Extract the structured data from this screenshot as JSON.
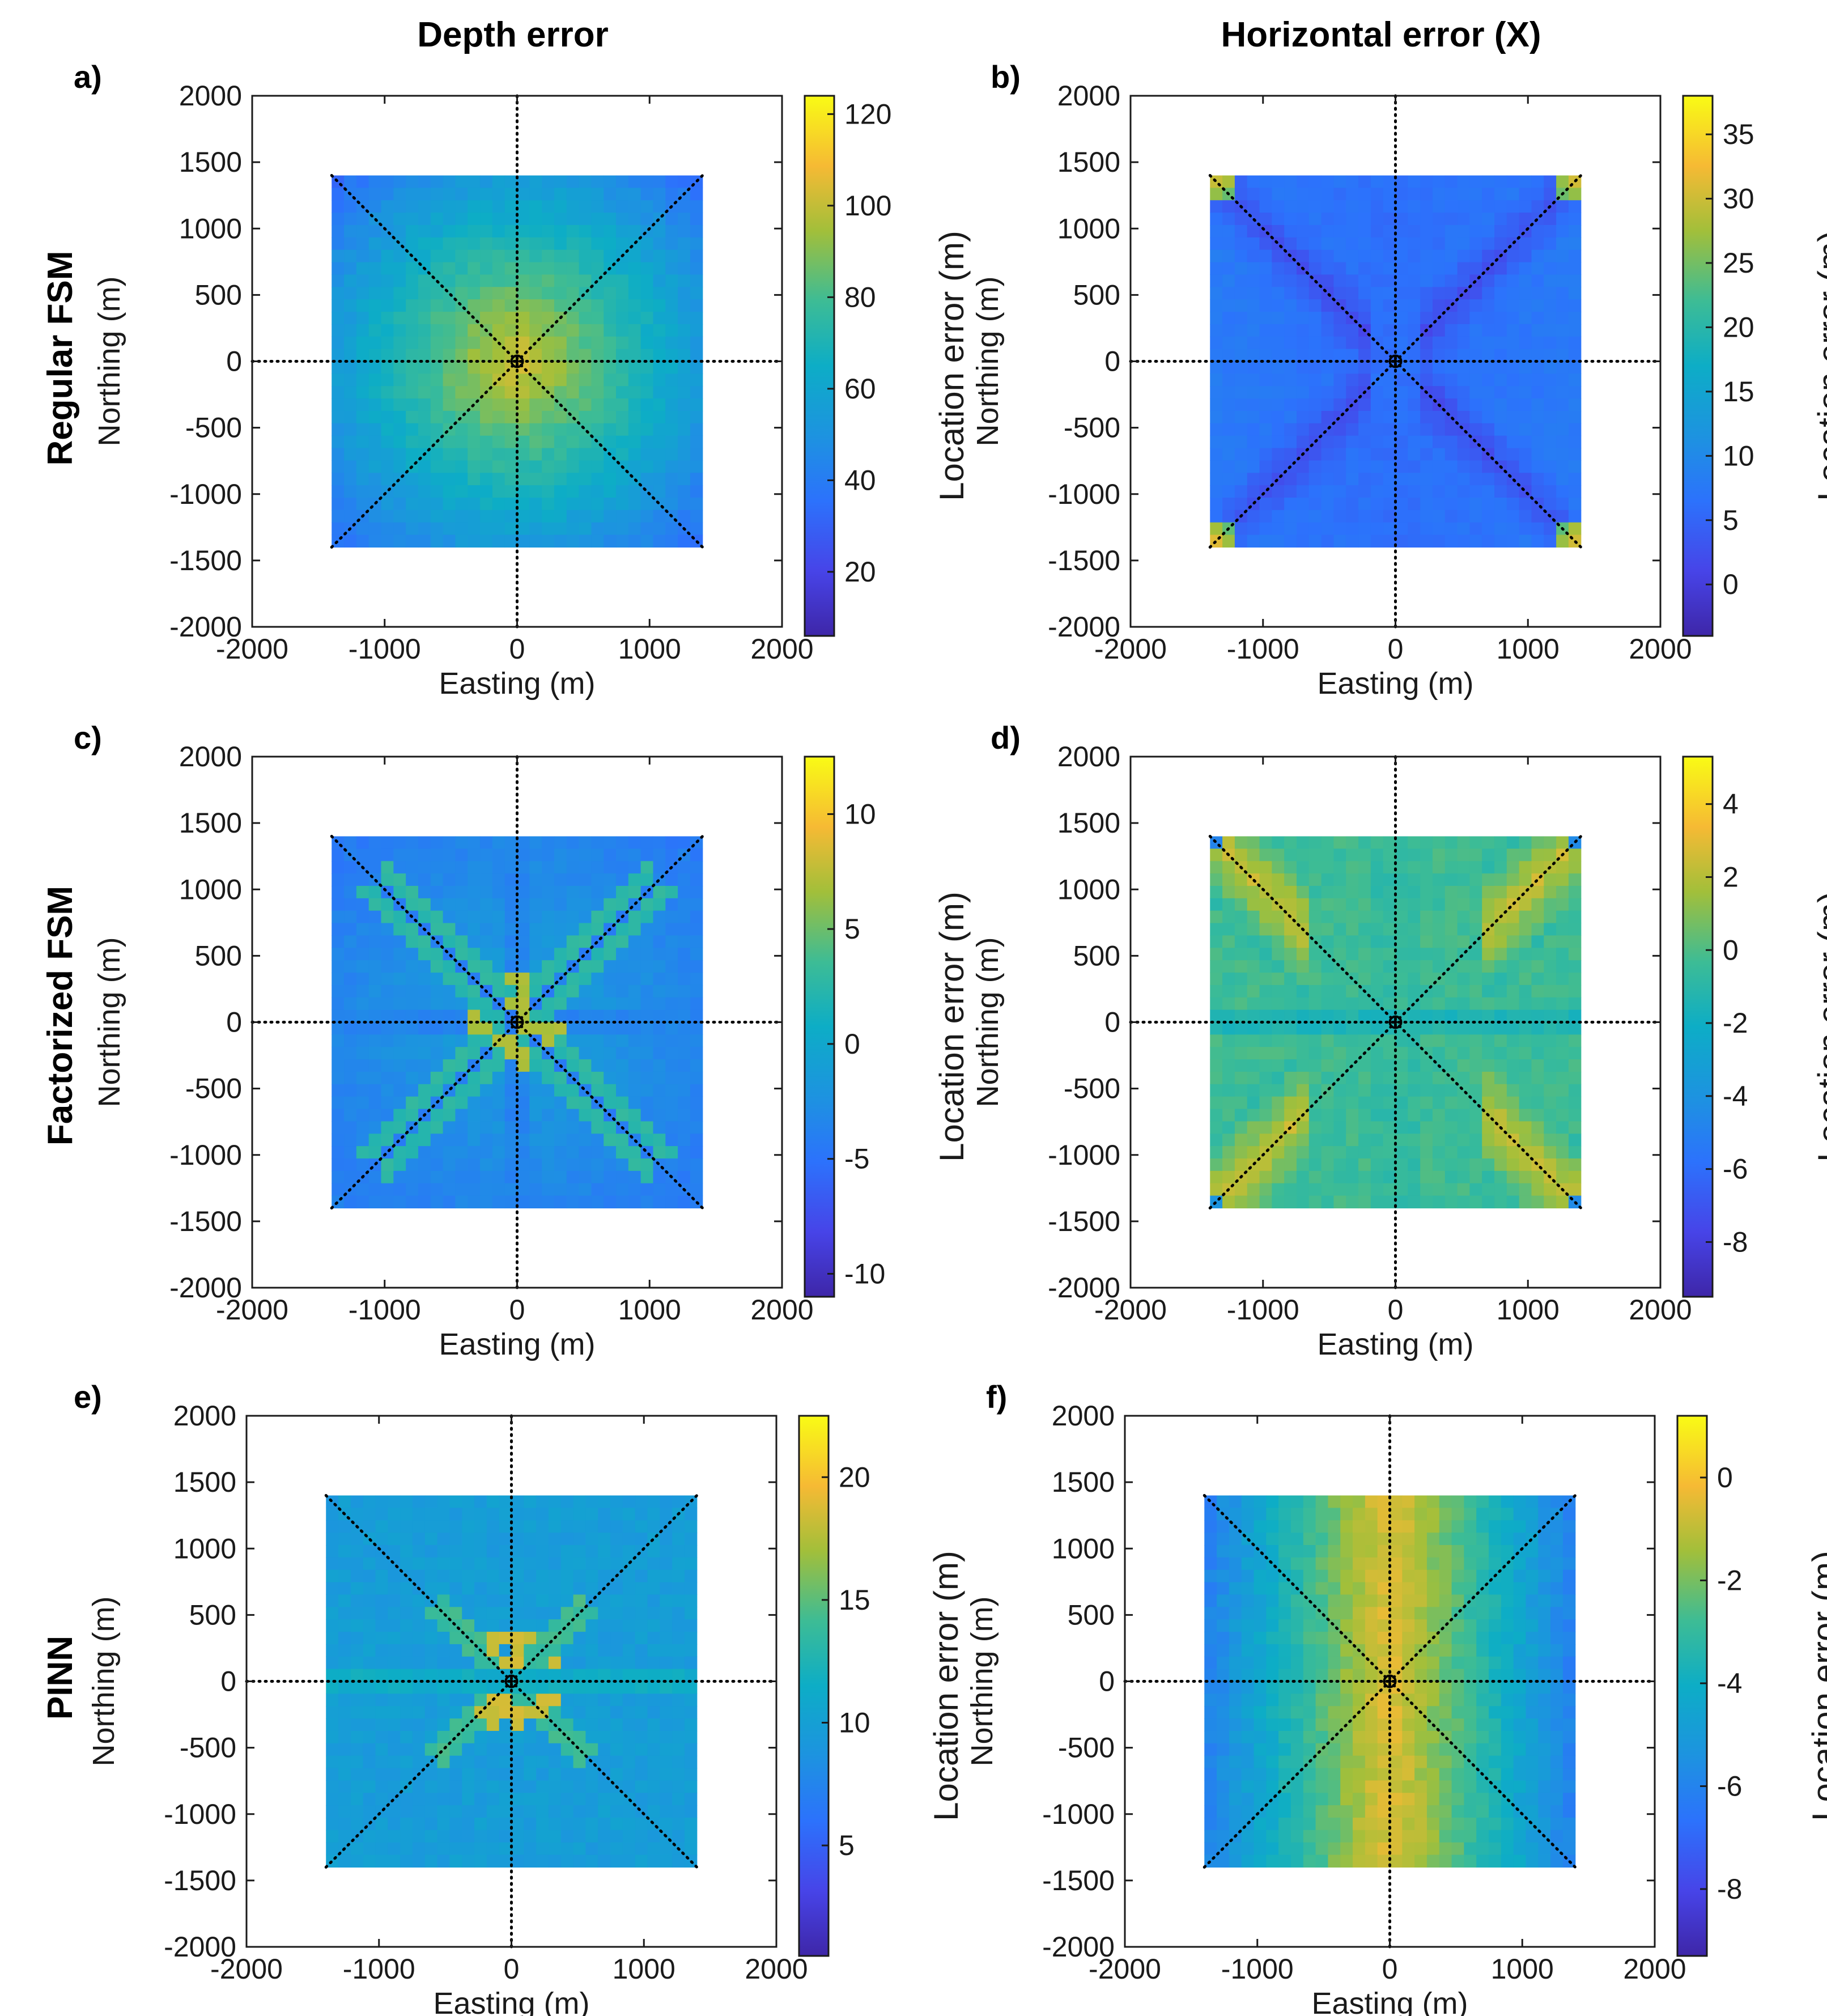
{
  "figure": {
    "column_titles": [
      "Depth error",
      "Horizontal error (X)"
    ],
    "row_titles": [
      "Regular FSM",
      "Factorized FSM",
      "PINN"
    ]
  },
  "chart_data": [
    {
      "panel": "a)",
      "type": "heatmap",
      "row": "Regular FSM",
      "column": "Depth error",
      "xlabel": "Easting (m)",
      "ylabel": "Northing (m)",
      "xlim": [
        -2000,
        2000
      ],
      "ylim": [
        -2000,
        2000
      ],
      "xticks": [
        "-2000",
        "-1000",
        "0",
        "1000",
        "2000"
      ],
      "yticks": [
        "2000",
        "1500",
        "1000",
        "500",
        "0",
        "-500",
        "-1000",
        "-1500",
        "-2000"
      ],
      "colorbar_label": "Location error (m)",
      "clim": [
        6,
        124
      ],
      "cticks": [
        "120",
        "100",
        "80",
        "60",
        "40",
        "20"
      ],
      "cticks_values": [
        120,
        100,
        80,
        60,
        40,
        20
      ],
      "pattern": "center_peak",
      "field_extent": [
        -1400,
        1400
      ]
    },
    {
      "panel": "b)",
      "type": "heatmap",
      "row": "Regular FSM",
      "column": "Horizontal error (X)",
      "xlabel": "Easting (m)",
      "ylabel": "Northing (m)",
      "xlim": [
        -2000,
        2000
      ],
      "ylim": [
        -2000,
        2000
      ],
      "xticks": [
        "-2000",
        "-1000",
        "0",
        "1000",
        "2000"
      ],
      "yticks": [
        "2000",
        "1500",
        "1000",
        "500",
        "0",
        "-500",
        "-1000",
        "-1500",
        "-2000"
      ],
      "colorbar_label": "Location error (m)",
      "clim": [
        -4,
        38
      ],
      "cticks": [
        "35",
        "30",
        "25",
        "20",
        "15",
        "10",
        "5",
        "0"
      ],
      "cticks_values": [
        35,
        30,
        25,
        20,
        15,
        10,
        5,
        0
      ],
      "pattern": "bowtie_low",
      "field_extent": [
        -1400,
        1400
      ]
    },
    {
      "panel": "c)",
      "type": "heatmap",
      "row": "Factorized FSM",
      "column": "Depth error",
      "xlabel": "Easting (m)",
      "ylabel": "Northing (m)",
      "xlim": [
        -2000,
        2000
      ],
      "ylim": [
        -2000,
        2000
      ],
      "xticks": [
        "-2000",
        "-1000",
        "0",
        "1000",
        "2000"
      ],
      "yticks": [
        "2000",
        "1500",
        "1000",
        "500",
        "0",
        "-500",
        "-1000",
        "-1500",
        "-2000"
      ],
      "colorbar_label": "Location error (m)",
      "clim": [
        -11,
        12.5
      ],
      "cticks": [
        "10",
        "5",
        "0",
        "-5",
        "-10"
      ],
      "cticks_values": [
        10,
        5,
        0,
        -5,
        -10
      ],
      "pattern": "star_mid",
      "field_extent": [
        -1400,
        1400
      ]
    },
    {
      "panel": "d)",
      "type": "heatmap",
      "row": "Factorized FSM",
      "column": "Horizontal error (X)",
      "xlabel": "Easting (m)",
      "ylabel": "Northing (m)",
      "xlim": [
        -2000,
        2000
      ],
      "ylim": [
        -2000,
        2000
      ],
      "xticks": [
        "-2000",
        "-1000",
        "0",
        "1000",
        "2000"
      ],
      "yticks": [
        "2000",
        "1500",
        "1000",
        "500",
        "0",
        "-500",
        "-1000",
        "-1500",
        "-2000"
      ],
      "colorbar_label": "Location error (m)",
      "clim": [
        -9.5,
        5.3
      ],
      "cticks": [
        "4",
        "2",
        "0",
        "-2",
        "-4",
        "-6",
        "-8"
      ],
      "cticks_values": [
        4,
        2,
        0,
        -2,
        -4,
        -6,
        -8
      ],
      "pattern": "corner_high",
      "field_extent": [
        -1400,
        1400
      ]
    },
    {
      "panel": "e)",
      "type": "heatmap",
      "row": "PINN",
      "column": "Depth error",
      "xlabel": "Easting (m)",
      "ylabel": "Northing (m)",
      "xlim": [
        -2000,
        2000
      ],
      "ylim": [
        -2000,
        2000
      ],
      "xticks": [
        "-2000",
        "-1000",
        "0",
        "1000",
        "2000"
      ],
      "yticks": [
        "2000",
        "1500",
        "1000",
        "500",
        "0",
        "-500",
        "-1000",
        "-1500",
        "-2000"
      ],
      "colorbar_label": "Location error (m)",
      "clim": [
        0.5,
        22.5
      ],
      "cticks": [
        "20",
        "15",
        "10",
        "5"
      ],
      "cticks_values": [
        20,
        15,
        10,
        5
      ],
      "pattern": "center_star",
      "field_extent": [
        -1400,
        1400
      ]
    },
    {
      "panel": "f)",
      "type": "heatmap",
      "row": "PINN",
      "column": "Horizontal error (X)",
      "xlabel": "Easting (m)",
      "ylabel": "Northing (m)",
      "xlim": [
        -2000,
        2000
      ],
      "ylim": [
        -2000,
        2000
      ],
      "xticks": [
        "-2000",
        "-1000",
        "0",
        "1000",
        "2000"
      ],
      "yticks": [
        "2000",
        "1500",
        "1000",
        "500",
        "0",
        "-500",
        "-1000",
        "-1500",
        "-2000"
      ],
      "colorbar_label": "Location error (m)",
      "clim": [
        -9.3,
        1.2
      ],
      "cticks": [
        "0",
        "-2",
        "-4",
        "-6",
        "-8"
      ],
      "cticks_values": [
        0,
        -2,
        -4,
        -6,
        -8
      ],
      "pattern": "vertical_band",
      "field_extent": [
        -1400,
        1400
      ]
    }
  ],
  "colors": {
    "axis": "#1a1a1a",
    "dotted_line": "#000000",
    "colormap": "parula"
  }
}
